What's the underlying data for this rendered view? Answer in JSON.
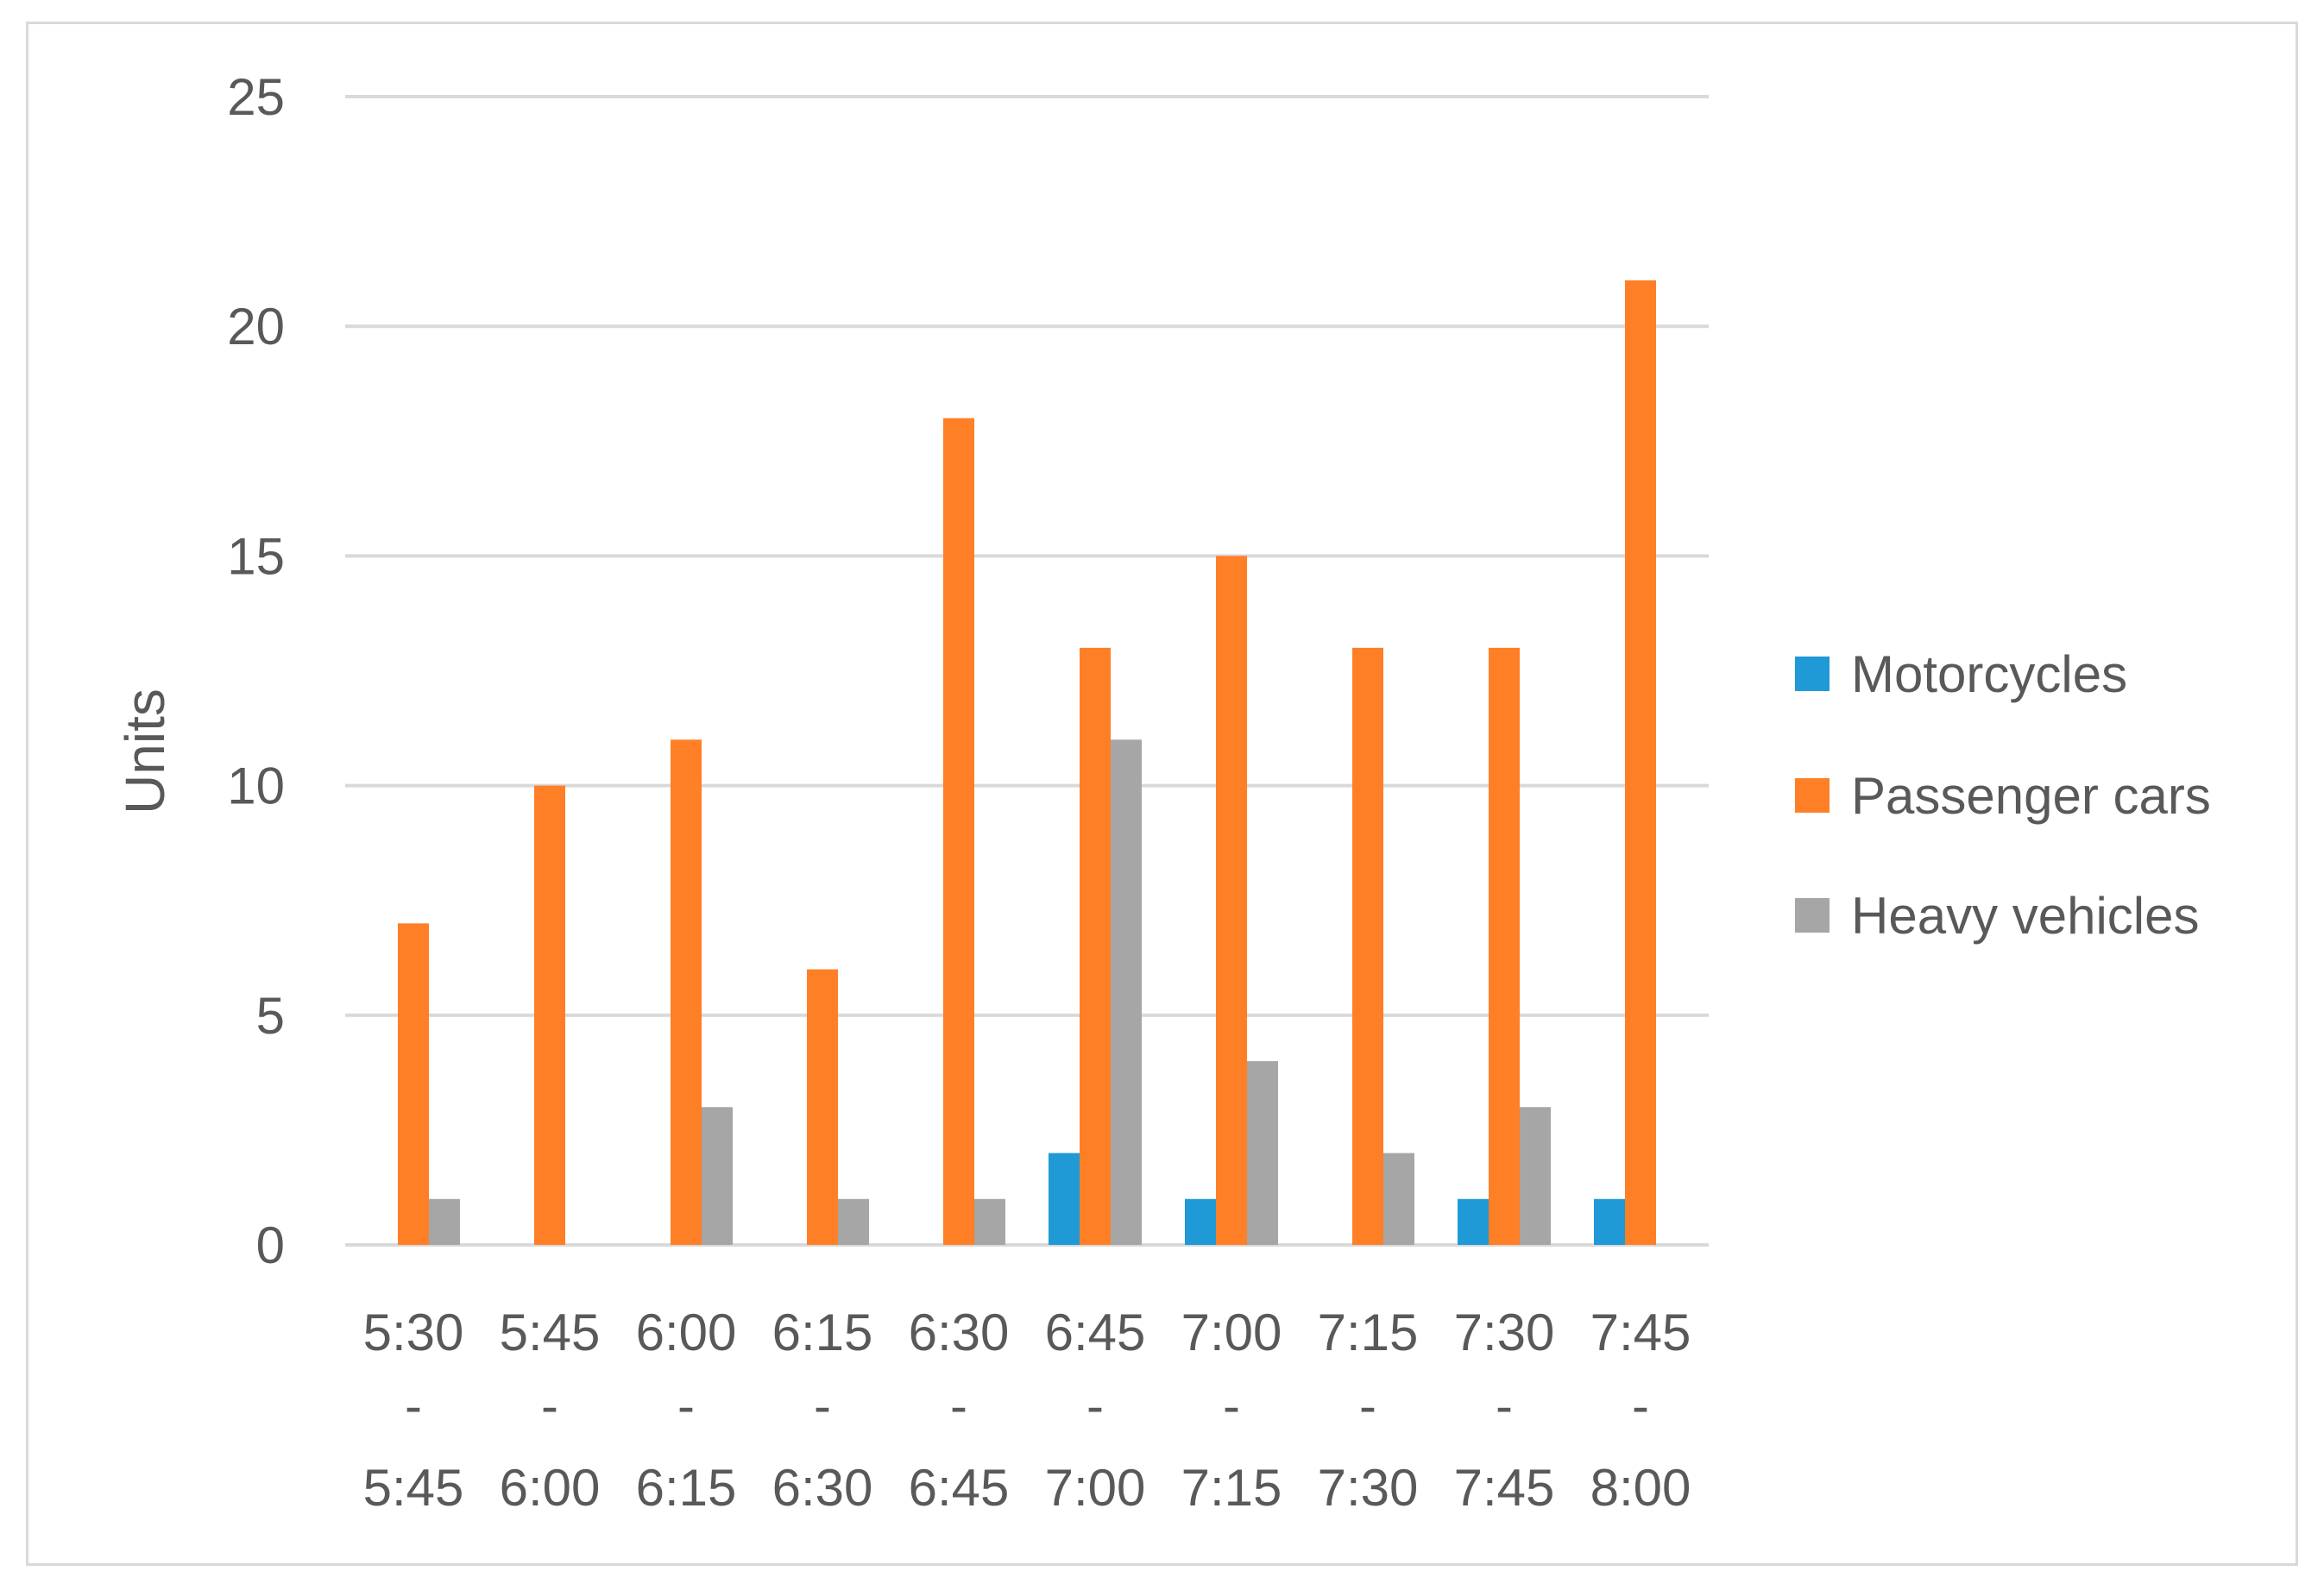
{
  "chart_data": {
    "type": "bar",
    "title": "",
    "xlabel": "",
    "ylabel": "Units",
    "ylim": [
      0,
      25
    ],
    "yticks": [
      0,
      5,
      10,
      15,
      20,
      25
    ],
    "grid": true,
    "legend_position": "right",
    "categories": [
      [
        "5:30",
        "-",
        "5:45"
      ],
      [
        "5:45",
        "-",
        "6:00"
      ],
      [
        "6:00",
        "-",
        "6:15"
      ],
      [
        "6:15",
        "-",
        "6:30"
      ],
      [
        "6:30",
        "-",
        "6:45"
      ],
      [
        "6:45",
        "-",
        "7:00"
      ],
      [
        "7:00",
        "-",
        "7:15"
      ],
      [
        "7:15",
        "-",
        "7:30"
      ],
      [
        "7:30",
        "-",
        "7:45"
      ],
      [
        "7:45",
        "-",
        "8:00"
      ]
    ],
    "series": [
      {
        "name": "Motorcycles",
        "color": "#1f9ad6",
        "values": [
          0,
          0,
          0,
          0,
          0,
          2,
          1,
          0,
          1,
          1
        ]
      },
      {
        "name": "Passenger cars",
        "color": "#ff7f27",
        "values": [
          7,
          10,
          11,
          6,
          18,
          13,
          15,
          13,
          13,
          21
        ]
      },
      {
        "name": "Heavy vehicles",
        "color": "#a6a6a6",
        "values": [
          1,
          0,
          3,
          1,
          1,
          11,
          4,
          2,
          3,
          0
        ]
      }
    ],
    "colors": {
      "gridline": "#d9d9d9",
      "text": "#595959",
      "border": "#d9d9d9"
    }
  }
}
